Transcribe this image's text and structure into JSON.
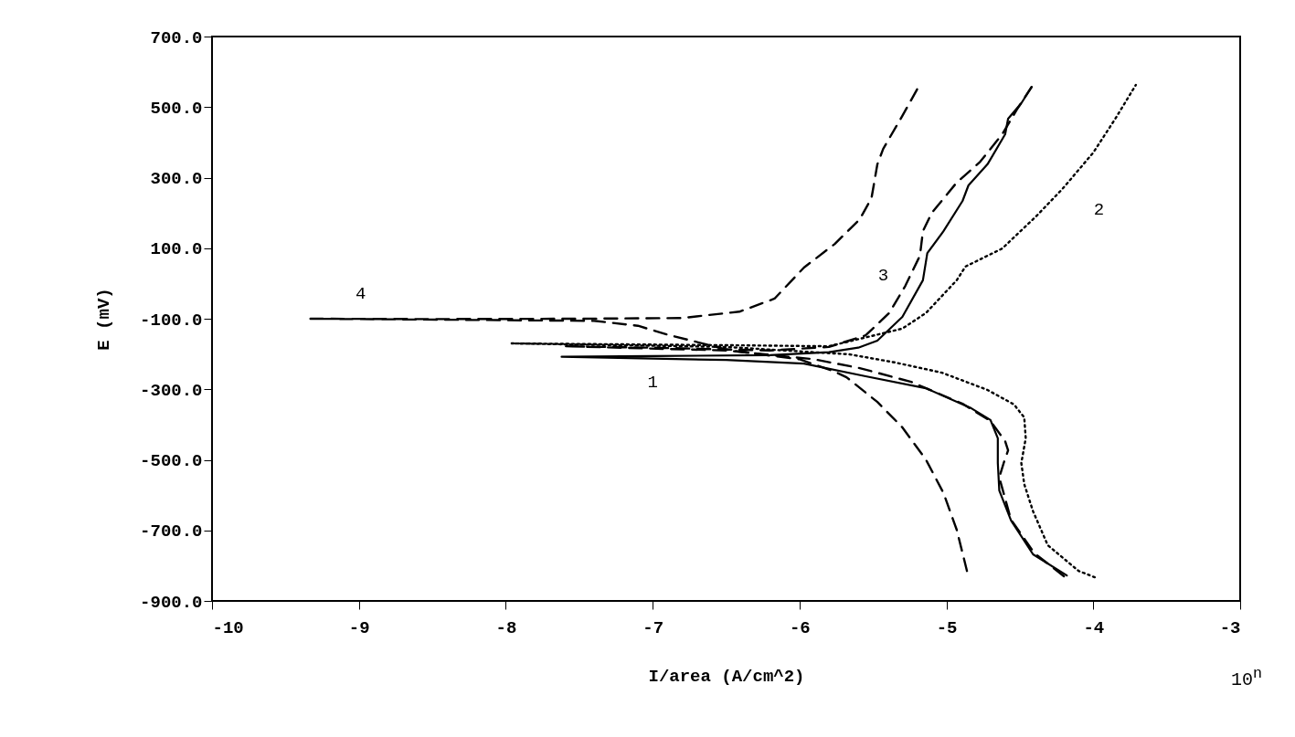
{
  "chart_data": {
    "type": "line",
    "xlabel": "I/area (A/cm^2)",
    "ylabel": "E (mV)",
    "xlim": [
      -10,
      -3
    ],
    "xticks": [
      -10,
      -9,
      -8,
      -7,
      -6,
      -5,
      -4,
      -3
    ],
    "ylim": [
      -900,
      700
    ],
    "yticks": [
      {
        "value": -900,
        "label": "-900.0"
      },
      {
        "value": -700,
        "label": "-700.0"
      },
      {
        "value": -500,
        "label": "-500.0"
      },
      {
        "value": -300,
        "label": "-300.0"
      },
      {
        "value": -100,
        "label": "-100.0"
      },
      {
        "value": 100,
        "label": "100.0"
      },
      {
        "value": 300,
        "label": "300.0"
      },
      {
        "value": 500,
        "label": "500.0"
      },
      {
        "value": 700,
        "label": "700.0"
      }
    ],
    "grid": false,
    "series": [
      {
        "name": "1",
        "color": "#000000",
        "line_style": "solid",
        "x": [
          -4.18,
          -4.41,
          -4.56,
          -4.64,
          -4.65,
          -4.65,
          -4.7,
          -4.83,
          -5.14,
          -5.55,
          -5.97,
          -6.5,
          -7.62,
          -7.0,
          -6.2,
          -5.8,
          -5.6,
          -5.47,
          -5.3,
          -5.16,
          -5.13,
          -5.02,
          -4.89,
          -4.85,
          -4.72,
          -4.6,
          -4.58,
          -4.49,
          -4.42
        ],
        "values": [
          -828,
          -768,
          -672,
          -587,
          -509,
          -439,
          -387,
          -354,
          -297,
          -263,
          -227,
          -217,
          -208,
          -206,
          -203,
          -195,
          -182,
          -162,
          -95,
          9,
          86,
          148,
          234,
          278,
          338,
          423,
          467,
          511,
          557
        ]
      },
      {
        "name": "2",
        "color": "#000000",
        "line_style": "dotted",
        "x": [
          -3.99,
          -4.1,
          -4.31,
          -4.41,
          -4.47,
          -4.49,
          -4.46,
          -4.47,
          -4.54,
          -4.72,
          -5.03,
          -5.35,
          -5.66,
          -6.5,
          -7.96,
          -6.5,
          -5.8,
          -5.3,
          -5.14,
          -4.93,
          -4.87,
          -4.62,
          -4.39,
          -4.21,
          -4.0,
          -3.85,
          -3.71
        ],
        "values": [
          -833,
          -815,
          -742,
          -646,
          -569,
          -509,
          -439,
          -380,
          -343,
          -302,
          -253,
          -224,
          -201,
          -180,
          -170,
          -175,
          -178,
          -128,
          -84,
          9,
          48,
          99,
          190,
          268,
          371,
          467,
          563
        ]
      },
      {
        "name": "3",
        "color": "#000000",
        "line_style": "dashed",
        "x": [
          -4.2,
          -4.4,
          -4.56,
          -4.64,
          -4.61,
          -4.58,
          -4.6,
          -4.7,
          -4.89,
          -5.24,
          -5.59,
          -5.9,
          -6.5,
          -7.6,
          -7.0,
          -6.2,
          -5.8,
          -5.55,
          -5.39,
          -5.28,
          -5.18,
          -5.16,
          -5.1,
          -4.93,
          -4.77,
          -4.62,
          -4.52,
          -4.42
        ],
        "values": [
          -830,
          -765,
          -670,
          -550,
          -509,
          -473,
          -447,
          -390,
          -341,
          -279,
          -240,
          -215,
          -190,
          -178,
          -182,
          -190,
          -180,
          -147,
          -84,
          -7,
          79,
          148,
          200,
          286,
          345,
          423,
          493,
          557
        ]
      },
      {
        "name": "4",
        "color": "#000000",
        "line_style": "dashed",
        "x": [
          -4.86,
          -4.93,
          -5.02,
          -5.14,
          -5.3,
          -5.47,
          -5.68,
          -5.76,
          -6.0,
          -6.47,
          -6.9,
          -7.1,
          -7.4,
          -8.0,
          -9.33,
          -8.5,
          -7.5,
          -6.8,
          -6.41,
          -6.17,
          -5.97,
          -5.76,
          -5.59,
          -5.51,
          -5.47,
          -5.43,
          -5.3,
          -5.18
        ],
        "values": [
          -815,
          -698,
          -594,
          -499,
          -408,
          -336,
          -266,
          -250,
          -215,
          -190,
          -145,
          -120,
          -106,
          -104,
          -100,
          -101,
          -100,
          -98,
          -80,
          -43,
          45,
          112,
          182,
          242,
          338,
          382,
          475,
          565
        ]
      }
    ],
    "annotations": [
      "10$^{n}$"
    ]
  }
}
